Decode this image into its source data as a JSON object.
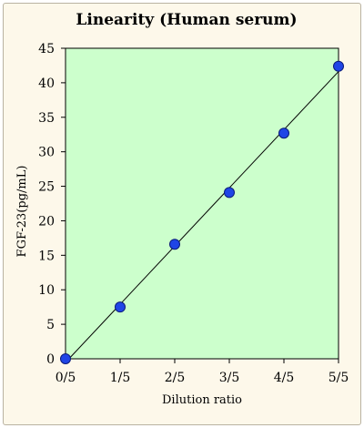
{
  "chart_data": {
    "type": "scatter",
    "title": "Linearity (Human serum)",
    "xlabel": "Dilution ratio",
    "ylabel": "FGF-23(pg/mL)",
    "categories": [
      "0/5",
      "1/5",
      "2/5",
      "3/5",
      "4/5",
      "5/5"
    ],
    "x": [
      0,
      0.2,
      0.4,
      0.6,
      0.8,
      1.0
    ],
    "values": [
      0,
      7.5,
      16.6,
      24.1,
      32.7,
      42.4
    ],
    "ylim": [
      0,
      45
    ],
    "yticks": [
      "0",
      "5",
      "10",
      "15",
      "20",
      "25",
      "30",
      "35",
      "40",
      "45"
    ],
    "trendline": true,
    "grid": false,
    "legend": "none",
    "colors": {
      "plot_background": "#ccffcc",
      "marker_fill": "#1f45e6",
      "marker_stroke": "#0a1a7a",
      "line": "#000000"
    }
  }
}
